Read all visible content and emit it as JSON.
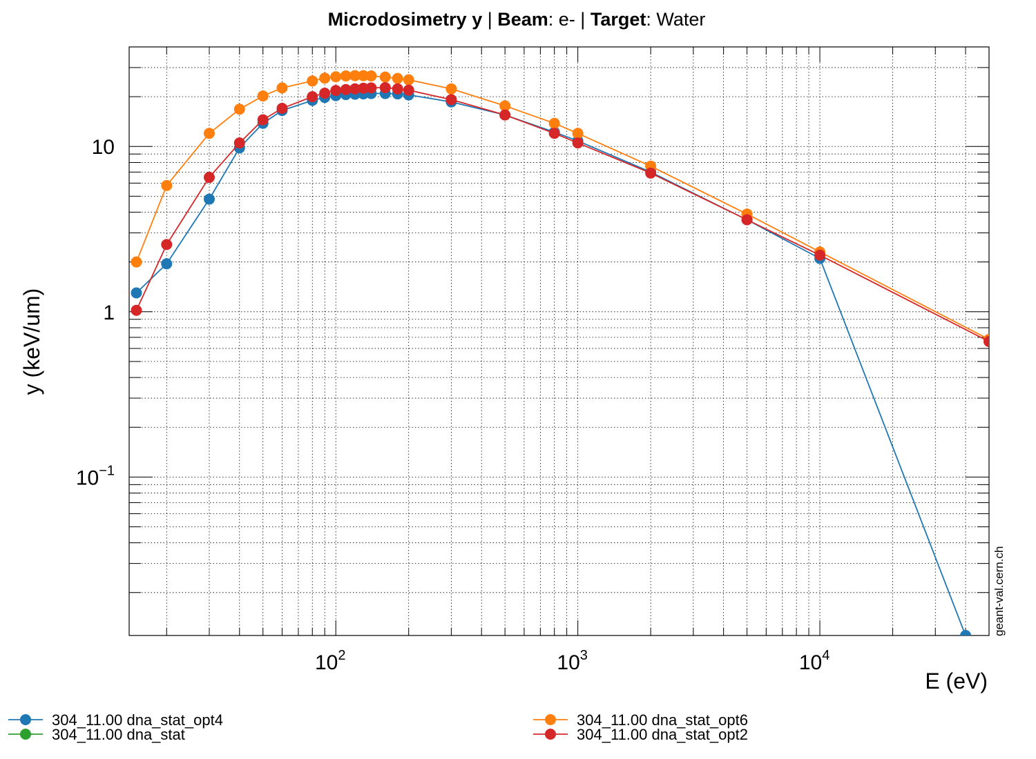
{
  "chart_data": {
    "type": "line",
    "title_parts": [
      {
        "text": "Microdosimetry y",
        "bold": true
      },
      {
        "text": "  | ",
        "bold": false
      },
      {
        "text": "Beam",
        "bold": true
      },
      {
        "text": ": e- | ",
        "bold": false
      },
      {
        "text": "Target",
        "bold": true
      },
      {
        "text": ": Water",
        "bold": false
      }
    ],
    "xlabel": "E (eV)",
    "ylabel": "y (keV/um)",
    "xscale": "log",
    "yscale": "log",
    "xlim": [
      14,
      50000
    ],
    "ylim": [
      0.011,
      40
    ],
    "grid": true,
    "legend_position": "bottom",
    "x_tick_labels": [
      {
        "value": 100,
        "base": "10",
        "exp": "2"
      },
      {
        "value": 1000,
        "base": "10",
        "exp": "3"
      },
      {
        "value": 10000,
        "base": "10",
        "exp": "4"
      }
    ],
    "y_tick_labels": [
      {
        "value": 0.1,
        "base": "10",
        "exp": "−1"
      },
      {
        "value": 1,
        "text": "1"
      },
      {
        "value": 10,
        "text": "10"
      }
    ],
    "watermark": "geant-val.cern.ch",
    "series": [
      {
        "name": "304_11.00 dna_stat_opt4",
        "color": "#1f77b4",
        "points": [
          [
            15,
            1.3
          ],
          [
            20,
            1.95
          ],
          [
            30,
            4.8
          ],
          [
            40,
            9.8
          ],
          [
            50,
            13.8
          ],
          [
            60,
            16.5
          ],
          [
            80,
            19.0
          ],
          [
            90,
            19.8
          ],
          [
            100,
            20.3
          ],
          [
            110,
            20.6
          ],
          [
            120,
            20.7
          ],
          [
            130,
            20.8
          ],
          [
            140,
            20.9
          ],
          [
            160,
            20.9
          ],
          [
            180,
            20.8
          ],
          [
            200,
            20.5
          ],
          [
            300,
            18.6
          ],
          [
            500,
            15.5
          ],
          [
            800,
            12.2
          ],
          [
            1000,
            10.8
          ],
          [
            2000,
            7.0
          ],
          [
            5000,
            3.6
          ],
          [
            10000,
            2.1
          ],
          [
            40000,
            0.011
          ]
        ]
      },
      {
        "name": "304_11.00 dna_stat",
        "color": "#2ca02c",
        "points": []
      },
      {
        "name": "304_11.00 dna_stat_opt6",
        "color": "#ff7f0e",
        "points": [
          [
            15,
            2.0
          ],
          [
            20,
            5.8
          ],
          [
            30,
            12.0
          ],
          [
            40,
            16.8
          ],
          [
            50,
            20.2
          ],
          [
            60,
            22.6
          ],
          [
            80,
            24.9
          ],
          [
            90,
            25.9
          ],
          [
            100,
            26.4
          ],
          [
            110,
            26.7
          ],
          [
            120,
            26.8
          ],
          [
            130,
            26.8
          ],
          [
            140,
            26.7
          ],
          [
            160,
            26.3
          ],
          [
            180,
            25.8
          ],
          [
            200,
            25.3
          ],
          [
            300,
            22.3
          ],
          [
            500,
            17.6
          ],
          [
            800,
            13.8
          ],
          [
            1000,
            12.0
          ],
          [
            2000,
            7.6
          ],
          [
            5000,
            3.9
          ],
          [
            10000,
            2.3
          ],
          [
            50000,
            0.68
          ]
        ]
      },
      {
        "name": "304_11.00 dna_stat_opt2",
        "color": "#d62728",
        "points": [
          [
            15,
            1.02
          ],
          [
            20,
            2.55
          ],
          [
            30,
            6.5
          ],
          [
            40,
            10.5
          ],
          [
            50,
            14.5
          ],
          [
            60,
            17.0
          ],
          [
            80,
            20.0
          ],
          [
            90,
            21.0
          ],
          [
            100,
            21.8
          ],
          [
            110,
            22.1
          ],
          [
            120,
            22.3
          ],
          [
            130,
            22.5
          ],
          [
            140,
            22.6
          ],
          [
            160,
            22.7
          ],
          [
            180,
            22.3
          ],
          [
            200,
            21.9
          ],
          [
            300,
            19.2
          ],
          [
            500,
            15.5
          ],
          [
            800,
            12.0
          ],
          [
            1000,
            10.5
          ],
          [
            2000,
            6.9
          ],
          [
            5000,
            3.6
          ],
          [
            10000,
            2.2
          ],
          [
            50000,
            0.66
          ]
        ]
      }
    ]
  }
}
